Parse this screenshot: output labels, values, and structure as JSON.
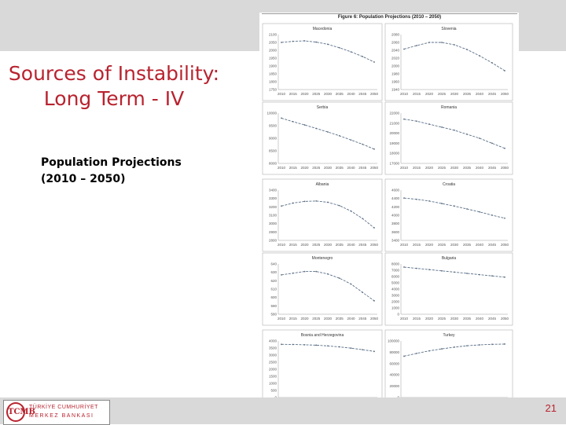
{
  "slide": {
    "title_lines": [
      "Sources of Instability:",
      "Long Term - IV"
    ],
    "subtitle_lines": [
      "Population Projections",
      "(2010 – 2050)"
    ],
    "page_number": "21"
  },
  "figure": {
    "caption": "Figure 6: Population Projections (2010 – 2050)"
  },
  "logo": {
    "mark": "TCMB",
    "line1": "TÜRKİYE CUMHURİYET",
    "line2": "MERKEZ BANKASI"
  },
  "colors": {
    "accent": "#b8232f",
    "band": "#d9d9d9",
    "series": "#5a6e85"
  },
  "chart_data": [
    {
      "type": "line",
      "title": "Macedonia",
      "categories": [
        "2010",
        "2015",
        "2020",
        "2025",
        "2030",
        "2035",
        "2040",
        "2045",
        "2050"
      ],
      "y_ticks": [
        "2100",
        "2050",
        "2000",
        "1950",
        "1900",
        "1850",
        "1800",
        "1750"
      ],
      "ylim": [
        1750,
        2100
      ],
      "values": [
        2050,
        2057,
        2060,
        2052,
        2038,
        2016,
        1990,
        1960,
        1925
      ]
    },
    {
      "type": "line",
      "title": "Slovenia",
      "categories": [
        "2010",
        "2015",
        "2020",
        "2025",
        "2030",
        "2035",
        "2040",
        "2045",
        "2050"
      ],
      "y_ticks": [
        "2080",
        "2060",
        "2040",
        "2020",
        "2000",
        "1980",
        "1960",
        "1940"
      ],
      "ylim": [
        1940,
        2080
      ],
      "values": [
        2043,
        2052,
        2060,
        2060,
        2054,
        2042,
        2026,
        2008,
        1988
      ]
    },
    {
      "type": "line",
      "title": "Serbia",
      "categories": [
        "2010",
        "2015",
        "2020",
        "2025",
        "2030",
        "2035",
        "2040",
        "2045",
        "2050"
      ],
      "y_ticks": [
        "10000",
        "9500",
        "9000",
        "8500",
        "8000"
      ],
      "ylim": [
        8000,
        10000
      ],
      "values": [
        9800,
        9660,
        9530,
        9390,
        9250,
        9100,
        8930,
        8760,
        8570
      ]
    },
    {
      "type": "line",
      "title": "Romania",
      "categories": [
        "2010",
        "2015",
        "2020",
        "2025",
        "2030",
        "2035",
        "2040",
        "2045",
        "2050"
      ],
      "y_ticks": [
        "22000",
        "21000",
        "20000",
        "19000",
        "18000",
        "17000"
      ],
      "ylim": [
        17000,
        22000
      ],
      "values": [
        21400,
        21200,
        20900,
        20600,
        20300,
        19900,
        19500,
        19000,
        18500
      ]
    },
    {
      "type": "line",
      "title": "Albania",
      "categories": [
        "2010",
        "2015",
        "2020",
        "2025",
        "2030",
        "2035",
        "2040",
        "2045",
        "2050"
      ],
      "y_ticks": [
        "3400",
        "3300",
        "3200",
        "3100",
        "3000",
        "2900",
        "2800"
      ],
      "ylim": [
        2800,
        3400
      ],
      "values": [
        3210,
        3245,
        3265,
        3270,
        3255,
        3215,
        3150,
        3060,
        2950
      ]
    },
    {
      "type": "line",
      "title": "Croatia",
      "categories": [
        "2010",
        "2015",
        "2020",
        "2025",
        "2030",
        "2035",
        "2040",
        "2045",
        "2050"
      ],
      "y_ticks": [
        "4600",
        "4400",
        "4200",
        "4000",
        "3800",
        "3600",
        "3400"
      ],
      "ylim": [
        3400,
        4600
      ],
      "values": [
        4410,
        4380,
        4340,
        4280,
        4220,
        4150,
        4080,
        4000,
        3930
      ]
    },
    {
      "type": "line",
      "title": "Montenegro",
      "categories": [
        "2010",
        "2015",
        "2020",
        "2025",
        "2030",
        "2035",
        "2040",
        "2045",
        "2050"
      ],
      "y_ticks": [
        "640",
        "630",
        "620",
        "610",
        "600",
        "590",
        "580"
      ],
      "ylim": [
        580,
        640
      ],
      "values": [
        627,
        629,
        631,
        631,
        628,
        623,
        616,
        606,
        596
      ]
    },
    {
      "type": "line",
      "title": "Bulgaria",
      "categories": [
        "2010",
        "2015",
        "2020",
        "2025",
        "2030",
        "2035",
        "2040",
        "2045",
        "2050"
      ],
      "y_ticks": [
        "8000",
        "7000",
        "6000",
        "5000",
        "4000",
        "3000",
        "2000",
        "1000",
        "0"
      ],
      "ylim": [
        0,
        8000
      ],
      "values": [
        7500,
        7300,
        7100,
        6900,
        6700,
        6500,
        6300,
        6100,
        5900
      ]
    },
    {
      "type": "line",
      "title": "Bosnia and Herzegovina",
      "categories": [
        "2010",
        "2015",
        "2020",
        "2025",
        "2030",
        "2035",
        "2040",
        "2045",
        "2050"
      ],
      "y_ticks": [
        "4000",
        "3500",
        "3000",
        "2500",
        "2000",
        "1500",
        "1000",
        "500",
        "0"
      ],
      "ylim": [
        0,
        4000
      ],
      "values": [
        3760,
        3750,
        3730,
        3700,
        3650,
        3580,
        3490,
        3380,
        3260
      ]
    },
    {
      "type": "line",
      "title": "Turkey",
      "categories": [
        "2010",
        "2015",
        "2020",
        "2025",
        "2030",
        "2035",
        "2040",
        "2045",
        "2050"
      ],
      "y_ticks": [
        "100000",
        "80000",
        "60000",
        "40000",
        "20000",
        "0"
      ],
      "ylim": [
        0,
        100000
      ],
      "values": [
        73000,
        78000,
        82500,
        86000,
        89000,
        91500,
        93000,
        94000,
        94500
      ]
    }
  ]
}
